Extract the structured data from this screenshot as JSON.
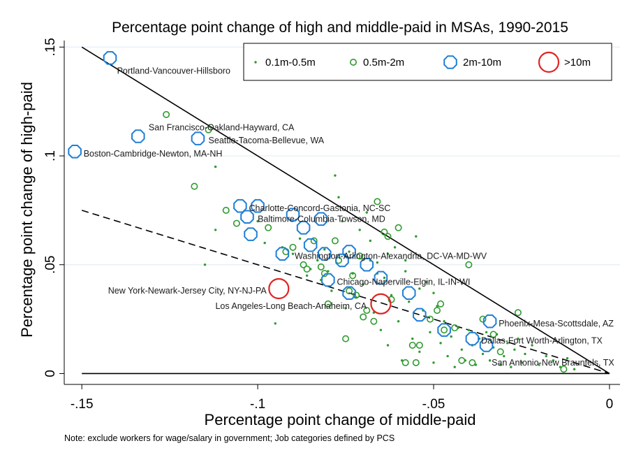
{
  "chart_data": {
    "type": "scatter",
    "title": "Percentage point change of high and middle-paid in MSAs, 1990-2015",
    "xlabel": "Percentage point change of middle-paid",
    "ylabel": "Percentage point change of high-paid",
    "note": "Note: exclude workers for wage/salary in government; Job categories defined by PCS",
    "xlim": [
      -0.155,
      0.003
    ],
    "ylim": [
      -0.005,
      0.153
    ],
    "x_ticks": [
      {
        "value": -0.15,
        "label": "-.15"
      },
      {
        "value": -0.1,
        "label": "-.1"
      },
      {
        "value": -0.05,
        "label": "-.05"
      },
      {
        "value": 0,
        "label": "0"
      }
    ],
    "y_ticks": [
      {
        "value": 0,
        "label": "0"
      },
      {
        "value": 0.05,
        "label": ".05"
      },
      {
        "value": 0.1,
        "label": ".1"
      },
      {
        "value": 0.15,
        "label": ".15"
      }
    ],
    "grid": "horizontal",
    "legend_position": "top-right",
    "lines": [
      {
        "name": "y = -x",
        "style": "solid",
        "points": [
          [
            -0.15,
            0.15
          ],
          [
            0,
            0
          ]
        ]
      },
      {
        "name": "y = -x/2",
        "style": "dashed",
        "points": [
          [
            -0.15,
            0.075
          ],
          [
            0,
            0
          ]
        ]
      },
      {
        "name": "y = 0",
        "style": "solid",
        "points": [
          [
            -0.15,
            0
          ],
          [
            0,
            0
          ]
        ]
      }
    ],
    "series": [
      {
        "name": "0.1m-0.5m",
        "marker": "dot",
        "color": "#2e9a2e",
        "points": [
          [
            -0.112,
            0.095
          ],
          [
            -0.115,
            0.05
          ],
          [
            -0.112,
            0.066
          ],
          [
            -0.095,
            0.023
          ],
          [
            -0.09,
            0.055
          ],
          [
            -0.088,
            0.062
          ],
          [
            -0.085,
            0.048
          ],
          [
            -0.082,
            0.043
          ],
          [
            -0.08,
            0.047
          ],
          [
            -0.079,
            0.038
          ],
          [
            -0.078,
            0.091
          ],
          [
            -0.077,
            0.081
          ],
          [
            -0.076,
            0.07
          ],
          [
            -0.075,
            0.03
          ],
          [
            -0.074,
            0.056
          ],
          [
            -0.073,
            0.046
          ],
          [
            -0.072,
            0.035
          ],
          [
            -0.071,
            0.066
          ],
          [
            -0.07,
            0.041
          ],
          [
            -0.069,
            0.074
          ],
          [
            -0.068,
            0.061
          ],
          [
            -0.067,
            0.028
          ],
          [
            -0.066,
            0.051
          ],
          [
            -0.065,
            0.02
          ],
          [
            -0.064,
            0.044
          ],
          [
            -0.063,
            0.013
          ],
          [
            -0.062,
            0.036
          ],
          [
            -0.061,
            0.058
          ],
          [
            -0.06,
            0.024
          ],
          [
            -0.059,
            0.006
          ],
          [
            -0.058,
            0.047
          ],
          [
            -0.057,
            0.033
          ],
          [
            -0.056,
            0.016
          ],
          [
            -0.055,
            0.063
          ],
          [
            -0.054,
            0.01
          ],
          [
            -0.053,
            0.029
          ],
          [
            -0.052,
            0.042
          ],
          [
            -0.051,
            0.019
          ],
          [
            -0.05,
            0.005
          ],
          [
            -0.049,
            0.031
          ],
          [
            -0.048,
            0.014
          ],
          [
            -0.047,
            0.024
          ],
          [
            -0.046,
            0.008
          ],
          [
            -0.045,
            0.017
          ],
          [
            -0.044,
            0.003
          ],
          [
            -0.043,
            0.021
          ],
          [
            -0.042,
            0.011
          ],
          [
            -0.041,
            0.006
          ],
          [
            -0.04,
            0.02
          ],
          [
            -0.039,
            0.013
          ],
          [
            -0.038,
            0.004
          ],
          [
            -0.037,
            0.016
          ],
          [
            -0.036,
            0.009
          ],
          [
            -0.035,
            0.019
          ],
          [
            -0.034,
            0.006
          ],
          [
            -0.033,
            0.012
          ],
          [
            -0.032,
            0.018
          ],
          [
            -0.031,
            0.004
          ],
          [
            -0.03,
            0.008
          ],
          [
            -0.029,
            0.014
          ],
          [
            -0.028,
            0.003
          ],
          [
            -0.027,
            0.011
          ],
          [
            -0.026,
            0.016
          ],
          [
            -0.025,
            0.005
          ],
          [
            -0.024,
            0.009
          ],
          [
            -0.022,
            0.013
          ],
          [
            -0.02,
            0.004
          ],
          [
            -0.018,
            0.008
          ],
          [
            -0.016,
            0.006
          ],
          [
            -0.014,
            0.003
          ],
          [
            -0.012,
            0.007
          ],
          [
            -0.01,
            0.002
          ],
          [
            -0.1,
            0.07
          ],
          [
            -0.098,
            0.06
          ],
          [
            -0.093,
            0.058
          ],
          [
            -0.086,
            0.045
          ],
          [
            -0.083,
            0.052
          ],
          [
            -0.081,
            0.057
          ],
          [
            -0.068,
            0.052
          ],
          [
            -0.066,
            0.046
          ],
          [
            -0.063,
            0.055
          ],
          [
            -0.058,
            0.052
          ],
          [
            -0.054,
            0.039
          ],
          [
            -0.05,
            0.037
          ]
        ]
      },
      {
        "name": "0.5m-2m",
        "marker": "hollow-small",
        "color": "#2e9a2e",
        "points": [
          [
            -0.126,
            0.119
          ],
          [
            -0.114,
            0.112
          ],
          [
            -0.118,
            0.086
          ],
          [
            -0.109,
            0.075
          ],
          [
            -0.106,
            0.069
          ],
          [
            -0.097,
            0.067
          ],
          [
            -0.092,
            0.056
          ],
          [
            -0.09,
            0.058
          ],
          [
            -0.087,
            0.05
          ],
          [
            -0.086,
            0.048
          ],
          [
            -0.084,
            0.061
          ],
          [
            -0.082,
            0.049
          ],
          [
            -0.081,
            0.046
          ],
          [
            -0.078,
            0.061
          ],
          [
            -0.077,
            0.052
          ],
          [
            -0.075,
            0.016
          ],
          [
            -0.074,
            0.038
          ],
          [
            -0.073,
            0.045
          ],
          [
            -0.072,
            0.036
          ],
          [
            -0.07,
            0.026
          ],
          [
            -0.069,
            0.029
          ],
          [
            -0.067,
            0.024
          ],
          [
            -0.066,
            0.079
          ],
          [
            -0.064,
            0.065
          ],
          [
            -0.063,
            0.063
          ],
          [
            -0.062,
            0.034
          ],
          [
            -0.06,
            0.067
          ],
          [
            -0.058,
            0.005
          ],
          [
            -0.056,
            0.013
          ],
          [
            -0.054,
            0.013
          ],
          [
            -0.051,
            0.025
          ],
          [
            -0.049,
            0.029
          ],
          [
            -0.048,
            0.032
          ],
          [
            -0.047,
            0.02
          ],
          [
            -0.044,
            0.021
          ],
          [
            -0.042,
            0.006
          ],
          [
            -0.04,
            0.05
          ],
          [
            -0.039,
            0.005
          ],
          [
            -0.036,
            0.025
          ],
          [
            -0.033,
            0.018
          ],
          [
            -0.031,
            0.01
          ],
          [
            -0.026,
            0.028
          ],
          [
            -0.013,
            0.002
          ],
          [
            -0.071,
            0.054
          ],
          [
            -0.055,
            0.005
          ],
          [
            -0.08,
            0.032
          ]
        ]
      },
      {
        "name": "2m-10m",
        "marker": "hollow-octagon",
        "color": "#1f7fd6",
        "points": [
          [
            -0.142,
            0.145
          ],
          [
            -0.134,
            0.109
          ],
          [
            -0.152,
            0.102
          ],
          [
            -0.117,
            0.108
          ],
          [
            -0.105,
            0.077
          ],
          [
            -0.1,
            0.077
          ],
          [
            -0.103,
            0.072
          ],
          [
            -0.102,
            0.064
          ],
          [
            -0.093,
            0.055
          ],
          [
            -0.09,
            0.073
          ],
          [
            -0.087,
            0.067
          ],
          [
            -0.085,
            0.059
          ],
          [
            -0.082,
            0.071
          ],
          [
            -0.081,
            0.055
          ],
          [
            -0.076,
            0.052
          ],
          [
            -0.074,
            0.056
          ],
          [
            -0.08,
            0.043
          ],
          [
            -0.074,
            0.037
          ],
          [
            -0.069,
            0.05
          ],
          [
            -0.065,
            0.044
          ],
          [
            -0.057,
            0.037
          ],
          [
            -0.054,
            0.027
          ],
          [
            -0.047,
            0.02
          ],
          [
            -0.039,
            0.016
          ],
          [
            -0.034,
            0.024
          ],
          [
            -0.035,
            0.013
          ]
        ]
      },
      {
        "name": ">10m",
        "marker": "hollow-large",
        "color": "#e02424",
        "points": [
          [
            -0.094,
            0.039
          ],
          [
            -0.065,
            0.032
          ]
        ]
      }
    ],
    "annotations": [
      {
        "text": "Portland-Vancouver-Hillsboro",
        "x": -0.14,
        "y": 0.139,
        "anchor": "start"
      },
      {
        "text": "San Francisco-Oakland-Hayward, CA",
        "x": -0.131,
        "y": 0.113,
        "anchor": "start"
      },
      {
        "text": "Seattle-Tacoma-Bellevue, WA",
        "x": -0.114,
        "y": 0.107,
        "anchor": "start"
      },
      {
        "text": "Boston-Cambridge-Newton, MA-NH",
        "x": -0.1495,
        "y": 0.101,
        "anchor": "start"
      },
      {
        "text": "Charlotte-Concord-Gastonia, NC-SC",
        "x": -0.1025,
        "y": 0.076,
        "anchor": "start"
      },
      {
        "text": "Baltimore-Columbia-Towson, MD",
        "x": -0.1,
        "y": 0.071,
        "anchor": "start"
      },
      {
        "text": "Washington-Arlington-Alexandria, DC-VA-MD-WV",
        "x": -0.0895,
        "y": 0.054,
        "anchor": "start"
      },
      {
        "text": "Chicago-Naperville-Elgin, IL-IN-WI",
        "x": -0.0775,
        "y": 0.042,
        "anchor": "start"
      },
      {
        "text": "New York-Newark-Jersey City, NY-NJ-PA",
        "x": -0.0975,
        "y": 0.038,
        "anchor": "end"
      },
      {
        "text": "Los Angeles-Long Beach-Anaheim, CA",
        "x": -0.069,
        "y": 0.031,
        "anchor": "end"
      },
      {
        "text": "Phoenix-Mesa-Scottsdale, AZ",
        "x": -0.0315,
        "y": 0.023,
        "anchor": "start"
      },
      {
        "text": "Dallas-Fort Worth-Arlington, TX",
        "x": -0.0365,
        "y": 0.015,
        "anchor": "start"
      },
      {
        "text": "San Antonio-New Braunfels, TX",
        "x": -0.0335,
        "y": 0.005,
        "anchor": "start"
      }
    ]
  }
}
